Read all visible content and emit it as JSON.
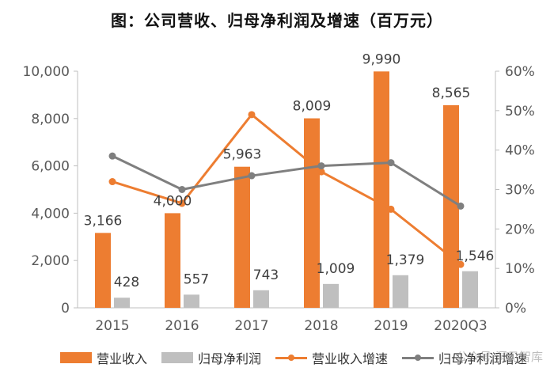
{
  "title": "图：公司营收、归母净利润及增速（百万元）",
  "watermark": "公众号·洞见智库",
  "chart_data": {
    "type": "bar",
    "categories": [
      "2015",
      "2016",
      "2017",
      "2018",
      "2019",
      "2020Q3"
    ],
    "series": [
      {
        "name": "营业收入",
        "kind": "bar",
        "axis": "left",
        "color": "#ED7D31",
        "values": [
          3166,
          4000,
          5963,
          8009,
          9990,
          8565
        ],
        "labels": [
          "3,166",
          "4,000",
          "5,963",
          "8,009",
          "9,990",
          "8,565"
        ]
      },
      {
        "name": "归母净利润",
        "kind": "bar",
        "axis": "left",
        "color": "#BFBFBF",
        "values": [
          428,
          557,
          743,
          1009,
          1379,
          1546
        ],
        "labels": [
          "428",
          "557",
          "743",
          "1,009",
          "1,379",
          "1,546"
        ]
      },
      {
        "name": "营业收入增速",
        "kind": "line",
        "axis": "right",
        "color": "#ED7D31",
        "values": [
          32,
          26.5,
          49,
          34.5,
          25,
          11
        ]
      },
      {
        "name": "归母净利润增速",
        "kind": "line",
        "axis": "right",
        "color": "#7F7F7F",
        "values": [
          38.5,
          30,
          33.5,
          36,
          36.8,
          25.8
        ]
      }
    ],
    "y_left": {
      "min": 0,
      "max": 10000,
      "ticks": [
        0,
        2000,
        4000,
        6000,
        8000,
        10000
      ],
      "tick_labels": [
        "0",
        "2,000",
        "4,000",
        "6,000",
        "8,000",
        "10,000"
      ]
    },
    "y_right": {
      "min": 0,
      "max": 60,
      "ticks": [
        0,
        10,
        20,
        30,
        40,
        50,
        60
      ],
      "tick_labels": [
        "0%",
        "10%",
        "20%",
        "30%",
        "40%",
        "50%",
        "60%"
      ]
    },
    "legend_position": "bottom"
  }
}
